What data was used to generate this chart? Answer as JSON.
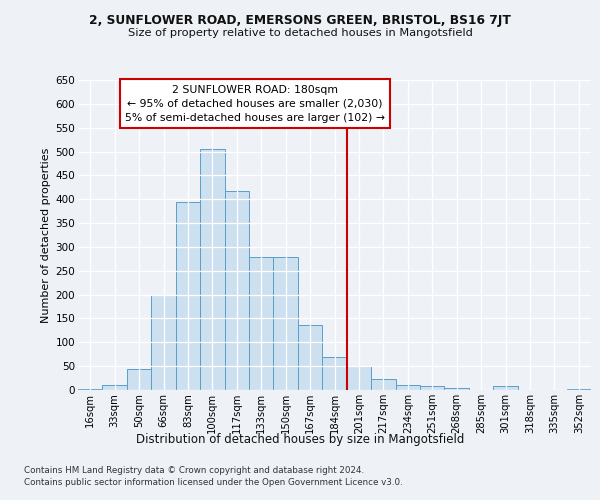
{
  "title1": "2, SUNFLOWER ROAD, EMERSONS GREEN, BRISTOL, BS16 7JT",
  "title2": "Size of property relative to detached houses in Mangotsfield",
  "xlabel": "Distribution of detached houses by size in Mangotsfield",
  "ylabel": "Number of detached properties",
  "footnote1": "Contains HM Land Registry data © Crown copyright and database right 2024.",
  "footnote2": "Contains public sector information licensed under the Open Government Licence v3.0.",
  "annotation_line1": "2 SUNFLOWER ROAD: 180sqm",
  "annotation_line2": "← 95% of detached houses are smaller (2,030)",
  "annotation_line3": "5% of semi-detached houses are larger (102) →",
  "bin_labels": [
    "16sqm",
    "33sqm",
    "50sqm",
    "66sqm",
    "83sqm",
    "100sqm",
    "117sqm",
    "133sqm",
    "150sqm",
    "167sqm",
    "184sqm",
    "201sqm",
    "217sqm",
    "234sqm",
    "251sqm",
    "268sqm",
    "285sqm",
    "301sqm",
    "318sqm",
    "335sqm",
    "352sqm"
  ],
  "bar_values": [
    3,
    10,
    45,
    200,
    395,
    505,
    418,
    278,
    278,
    137,
    70,
    50,
    23,
    10,
    8,
    5,
    0,
    8,
    0,
    0,
    3
  ],
  "bar_color": "#cde0f0",
  "bar_edge_color": "#5a9ec8",
  "vline_x_index": 10,
  "vline_color": "#cc0000",
  "ylim": [
    0,
    650
  ],
  "yticks": [
    0,
    50,
    100,
    150,
    200,
    250,
    300,
    350,
    400,
    450,
    500,
    550,
    600,
    650
  ],
  "bg_color": "#eef2f7",
  "grid_color": "#d0d8e4"
}
